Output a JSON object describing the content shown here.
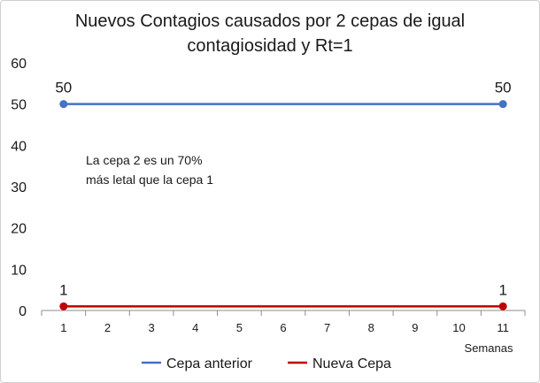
{
  "chart_data": {
    "type": "line",
    "title_lines": [
      "Nuevos Contagios causados por 2 cepas de igual",
      "contagiosidad y Rt=1"
    ],
    "xlabel": "Semanas",
    "ylabel": "",
    "categories": [
      "1",
      "2",
      "3",
      "4",
      "5",
      "6",
      "7",
      "8",
      "9",
      "10",
      "11"
    ],
    "x": [
      1,
      2,
      3,
      4,
      5,
      6,
      7,
      8,
      9,
      10,
      11
    ],
    "ylim": [
      0,
      60
    ],
    "yticks": [
      0,
      10,
      20,
      30,
      40,
      50,
      60
    ],
    "grid": false,
    "legend_position": "bottom",
    "series": [
      {
        "name": "Cepa anterior",
        "color": "#4472c4",
        "points": [
          {
            "x": 1,
            "y": 50
          },
          {
            "x": 11,
            "y": 50
          }
        ],
        "labels": [
          {
            "x": 1,
            "y": 50,
            "text": "50"
          },
          {
            "x": 11,
            "y": 50,
            "text": "50"
          }
        ]
      },
      {
        "name": "Nueva Cepa",
        "color": "#c00000",
        "points": [
          {
            "x": 1,
            "y": 1
          },
          {
            "x": 11,
            "y": 1
          }
        ],
        "labels": [
          {
            "x": 1,
            "y": 1,
            "text": "1"
          },
          {
            "x": 11,
            "y": 1,
            "text": "1"
          }
        ]
      }
    ],
    "annotation_lines": [
      "La cepa 2 es un 70%",
      "más letal que la cepa 1"
    ]
  }
}
